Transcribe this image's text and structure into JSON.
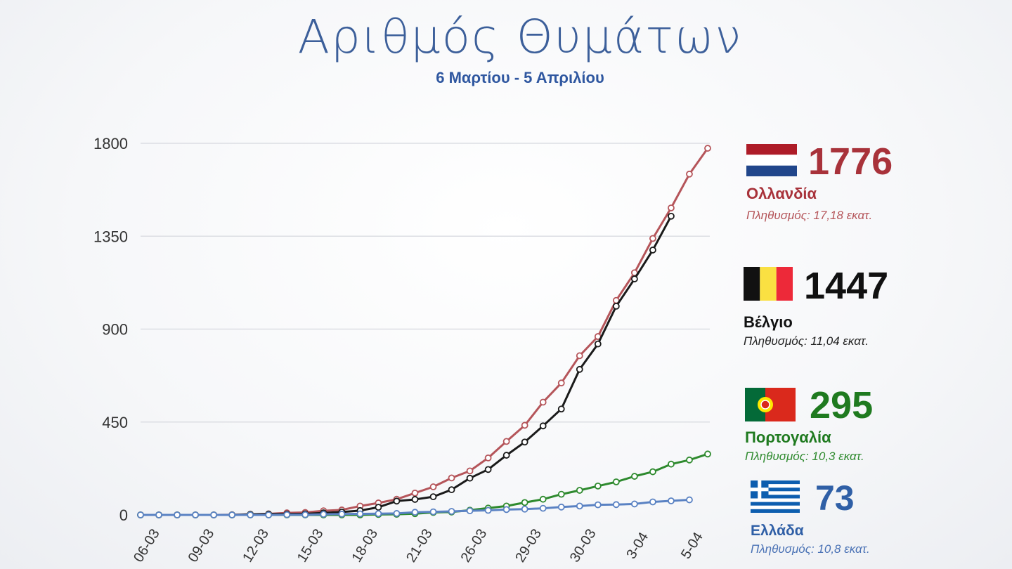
{
  "title": "Αριθμός Θυμάτων",
  "subtitle": "6 Μαρτίου - 5 Απριλίου",
  "chart_data": {
    "type": "line",
    "title": "Αριθμός Θυμάτων",
    "subtitle": "6 Μαρτίου - 5 Απριλίου",
    "ylim": [
      0,
      1800
    ],
    "yticks": [
      "0",
      "450",
      "900",
      "1350",
      "1800"
    ],
    "yticks_values": [
      0,
      450,
      900,
      1350,
      1800
    ],
    "xtick_labels": [
      "06-03",
      "09-03",
      "12-03",
      "15-03",
      "18-03",
      "21-03",
      "26-03",
      "29-03",
      "30-03",
      "3-04",
      "5-04"
    ],
    "grid": true,
    "series": [
      {
        "name": "Ολλανδία",
        "color": "#b5555a",
        "values": [
          0,
          0,
          0,
          0,
          0,
          1,
          3,
          5,
          10,
          12,
          20,
          24,
          43,
          58,
          76,
          106,
          136,
          179,
          213,
          276,
          356,
          434,
          546,
          639,
          771,
          864,
          1039,
          1173,
          1339,
          1487,
          1651,
          1776
        ]
      },
      {
        "name": "Βέλγιο",
        "color": "#1a1a1a",
        "values": [
          0,
          0,
          0,
          0,
          0,
          0,
          3,
          4,
          4,
          5,
          10,
          14,
          21,
          37,
          67,
          75,
          88,
          122,
          178,
          220,
          289,
          353,
          431,
          513,
          705,
          828,
          1011,
          1143,
          1283,
          1447
        ]
      },
      {
        "name": "Πορτογαλία",
        "color": "#2e8a2e",
        "values": [
          0,
          0,
          0,
          0,
          0,
          0,
          0,
          0,
          0,
          0,
          0,
          0,
          0,
          2,
          3,
          6,
          12,
          14,
          23,
          33,
          43,
          60,
          76,
          100,
          119,
          140,
          160,
          187,
          209,
          246,
          266,
          295
        ]
      },
      {
        "name": "Ελλάδα",
        "color": "#5a82c3",
        "values": [
          0,
          0,
          0,
          0,
          0,
          0,
          0,
          0,
          1,
          1,
          3,
          4,
          5,
          6,
          7,
          13,
          15,
          17,
          20,
          22,
          26,
          28,
          32,
          38,
          43,
          49,
          50,
          53,
          63,
          68,
          73
        ]
      }
    ]
  },
  "legend": [
    {
      "value": "1776",
      "country": "Ολλανδία",
      "population": "Πληθυσμός: 17,18 εκατ.",
      "color": "#a8323a",
      "pop_color": "#b5555a",
      "flag": "netherlands-flag"
    },
    {
      "value": "1447",
      "country": "Βέλγιο",
      "population": "Πληθυσμός: 11,04 εκατ.",
      "color": "#111111",
      "pop_color": "#222222",
      "flag": "belgium-flag"
    },
    {
      "value": "295",
      "country": "Πορτογαλία",
      "population": "Πληθυσμός: 10,3 εκατ.",
      "color": "#1f7a1f",
      "pop_color": "#2e8a2e",
      "flag": "portugal-flag"
    },
    {
      "value": "73",
      "country": "Ελλάδα",
      "population": "Πληθυσμός: 10,8 εκατ.",
      "color": "#2f5fa6",
      "pop_color": "#4a72b5",
      "flag": "greece-flag"
    }
  ]
}
